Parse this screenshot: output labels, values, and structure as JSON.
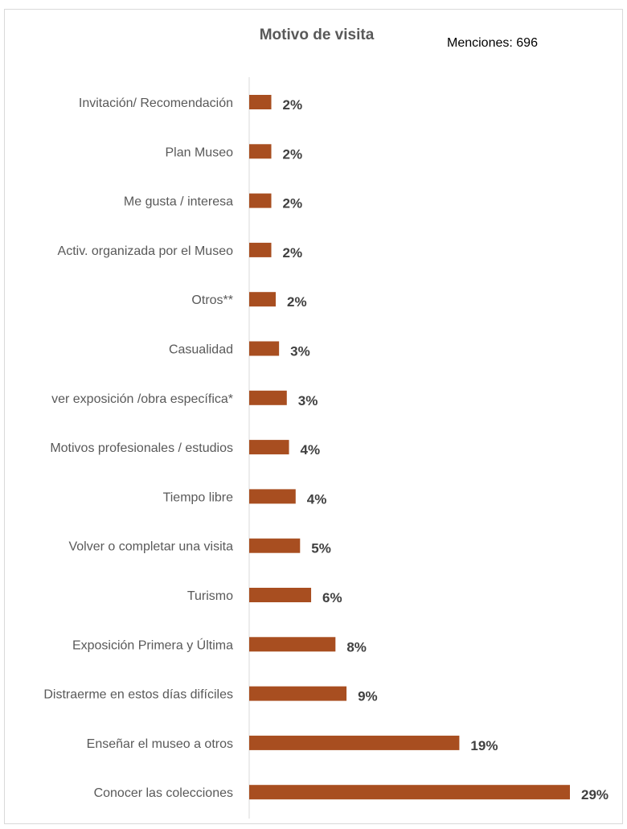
{
  "chart_data": {
    "type": "bar",
    "orientation": "horizontal",
    "title": "Motivo de visita",
    "note": "Menciones: 696",
    "bar_color": "#a84e20",
    "categories": [
      "Invitación/ Recomendación",
      "Plan Museo",
      "Me gusta / interesa",
      "Activ. organizada por el Museo",
      "Otros**",
      "Casualidad",
      "ver exposición /obra específica*",
      "Motivos profesionales / estudios",
      "Tiempo libre",
      "Volver o completar una visita",
      "Turismo",
      "Exposición Primera y Última",
      "Distraerme en estos días difíciles",
      "Enseñar el museo a otros",
      "Conocer las colecciones"
    ],
    "values": [
      2,
      2,
      2,
      2,
      2.4,
      2.7,
      3.4,
      3.6,
      4.2,
      4.6,
      5.6,
      7.8,
      8.8,
      19,
      29
    ],
    "data_labels": [
      "2%",
      "2%",
      "2%",
      "2%",
      "2%",
      "3%",
      "3%",
      "4%",
      "4%",
      "5%",
      "6%",
      "8%",
      "9%",
      "19%",
      "29%"
    ],
    "xlim": [
      0,
      29
    ],
    "grid": false,
    "legend": "none"
  }
}
